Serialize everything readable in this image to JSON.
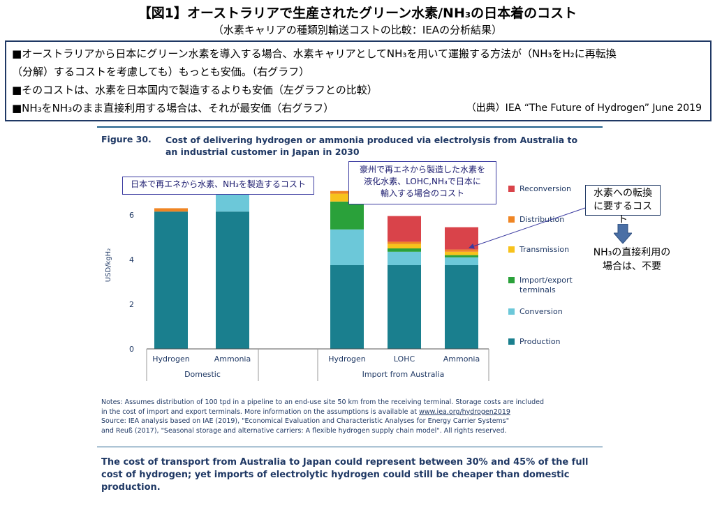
{
  "header": {
    "title": "【図1】オーストラリアで生産されたグリーン水素/NH₃の日本着のコスト",
    "subtitle": "（水素キャリアの種類別輸送コストの比較：IEAの分析結果）"
  },
  "summary": {
    "lines": [
      "■オーストラリアから日本にグリーン水素を導入する場合、水素キャリアとしてNH₃を用いて運搬する方法が（NH₃をH₂に再転換",
      "（分解）するコストを考慮しても）もっとも安価。（右グラフ）",
      "■そのコストは、水素を日本国内で製造するよりも安価（左グラフとの比較）",
      "■NH₃をNH₃のまま直接利用する場合は、それが最安価（右グラフ）"
    ],
    "source": "（出典）IEA “The Future of Hydrogen” June 2019"
  },
  "figure": {
    "label": "Figure 30.",
    "title": "Cost of delivering hydrogen or ammonia produced via electrolysis from Australia to an industrial customer in Japan in 2030"
  },
  "callouts": {
    "left": "日本で再エネから水素、NH₃を製造するコスト",
    "mid": [
      "豪州で再エネから製造した水素を",
      "液化水素、LOHC,NH₃で日本に",
      "輸入する場合のコスト"
    ],
    "right": [
      "水素への転換",
      "に要するコスト"
    ],
    "right_note": [
      "NH₃の直接利用の",
      "場合は、不要"
    ]
  },
  "notes": {
    "line1": "Notes: Assumes distribution of 100 tpd in a pipeline to an end-use site 50 km from the receiving terminal. Storage costs are included",
    "line2": "in the cost of import and export terminals. More information on the assumptions is available at ",
    "link": "www.iea.org/hydrogen2019",
    "line3": "Source: IEA analysis based on IAE (2019), \"Economical Evaluation and Characteristic Analyses for Energy Carrier Systems\"",
    "line4": "and Reuß (2017), \"Seasonal storage and alternative carriers: A flexible hydrogen supply chain model\". All rights reserved."
  },
  "takeaway": "The cost of transport from Australia to Japan could represent between 30% and 45% of the full cost of hydrogen; yet imports of electrolytic hydrogen could still be cheaper than domestic production.",
  "chart_data": {
    "type": "bar",
    "stacked": true,
    "ylabel": "USD/kgH₂",
    "ylim": [
      0,
      7.5
    ],
    "yticks": [
      0,
      2,
      4,
      6
    ],
    "categories": [
      "Hydrogen",
      "Ammonia",
      "Hydrogen",
      "LOHC",
      "Ammonia"
    ],
    "groups": [
      {
        "name": "Domestic",
        "categories": [
          0,
          1
        ]
      },
      {
        "name": "Import from Australia",
        "categories": [
          2,
          3,
          4
        ]
      }
    ],
    "series": [
      {
        "name": "Production",
        "color": "#1a7f8e",
        "values": [
          6.15,
          6.15,
          3.75,
          3.75,
          3.75
        ]
      },
      {
        "name": "Conversion",
        "color": "#6cc8d9",
        "values": [
          0,
          0.8,
          1.6,
          0.6,
          0.35
        ]
      },
      {
        "name": "Import/export terminals",
        "color": "#2aa13a",
        "values": [
          0,
          0,
          1.25,
          0.15,
          0.1
        ]
      },
      {
        "name": "Transmission",
        "color": "#f7c21c",
        "values": [
          0,
          0,
          0.35,
          0.2,
          0.15
        ]
      },
      {
        "name": "Distribution",
        "color": "#ef8524",
        "values": [
          0.15,
          0.1,
          0.12,
          0.1,
          0.1
        ]
      },
      {
        "name": "Reconversion",
        "color": "#d9434a",
        "values": [
          0,
          0,
          0,
          1.15,
          1.0
        ]
      }
    ],
    "legend_position": "right",
    "grid": false
  }
}
